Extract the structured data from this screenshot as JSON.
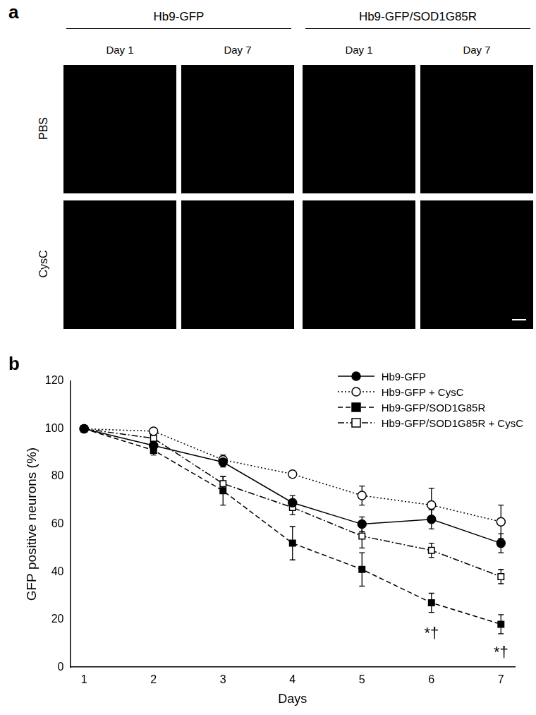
{
  "panel_a": {
    "label": "a",
    "groups": [
      "Hb9-GFP",
      "Hb9-GFP/SOD1G85R"
    ],
    "columns": [
      "Day 1",
      "Day 7",
      "Day 1",
      "Day 7"
    ],
    "rows": [
      "PBS",
      "CysC"
    ]
  },
  "chart_data": {
    "type": "line",
    "label": "b",
    "x_label": "Days",
    "y_label": "GFP positive neurons (%)",
    "x": [
      1,
      2,
      3,
      4,
      5,
      6,
      7
    ],
    "xlim": [
      0.8,
      7.2
    ],
    "xticks": [
      1,
      2,
      3,
      4,
      5,
      6,
      7
    ],
    "ylim": [
      0,
      120
    ],
    "yticks": [
      0,
      20,
      40,
      60,
      80,
      100,
      120
    ],
    "grid": false,
    "legend": "upper right",
    "series": [
      {
        "name": "Hb9-GFP",
        "color": "#000000",
        "marker": "circle",
        "line_style": "solid",
        "values": [
          100,
          93,
          86,
          69,
          60,
          62,
          52
        ],
        "errors": [
          0,
          1,
          2,
          3,
          3,
          4,
          4
        ]
      },
      {
        "name": "Hb9-GFP + CysC",
        "color": "#000000",
        "marker": "circle-open",
        "line_style": "dotted",
        "values": [
          100,
          99,
          87,
          81,
          72,
          68,
          61
        ],
        "errors": [
          0,
          1,
          2,
          1,
          4,
          7,
          7
        ]
      },
      {
        "name": "Hb9-GFP/SOD1G85R",
        "color": "#000000",
        "marker": "square",
        "line_style": "dashed",
        "values": [
          100,
          91,
          74,
          52,
          41,
          27,
          18
        ],
        "errors": [
          0,
          2,
          6,
          7,
          7,
          4,
          4
        ]
      },
      {
        "name": "Hb9-GFP/SOD1G85R + CysC",
        "color": "#000000",
        "marker": "square-open",
        "line_style": "dashdot",
        "values": [
          100,
          96,
          77,
          67,
          55,
          49,
          38
        ],
        "errors": [
          0,
          2,
          3,
          3,
          5,
          3,
          3
        ]
      }
    ],
    "annotations": [
      {
        "x": 6,
        "y": 14,
        "text": "*†"
      },
      {
        "x": 7,
        "y": 6,
        "text": "*†"
      }
    ]
  }
}
